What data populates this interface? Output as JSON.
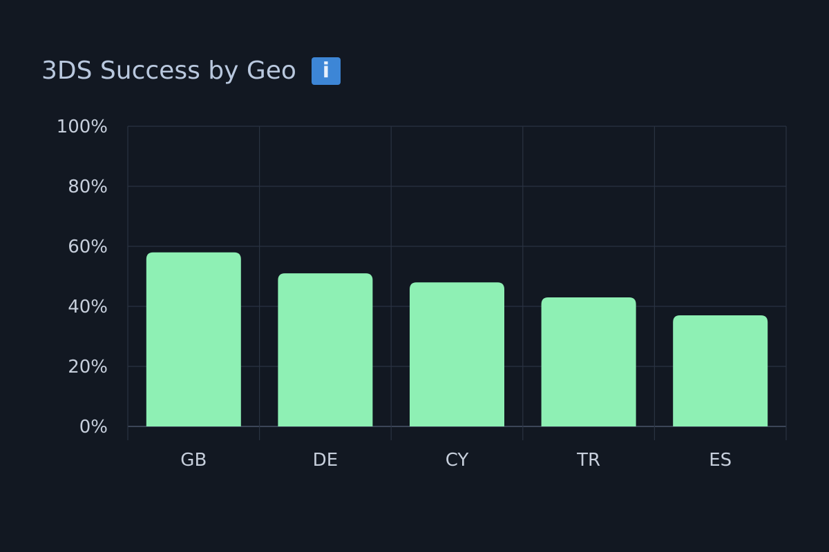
{
  "chart_data": {
    "type": "bar",
    "title": "3DS Success by Geo",
    "categories": [
      "GB",
      "DE",
      "CY",
      "TR",
      "ES"
    ],
    "values": [
      58,
      51,
      48,
      43,
      37
    ],
    "xlabel": "",
    "ylabel": "",
    "ylim": [
      0,
      100
    ],
    "yticks": [
      "0%",
      "20%",
      "40%",
      "60%",
      "80%",
      "100%"
    ],
    "grid": true,
    "bar_color": "#8ef0b4",
    "info_icon": "i"
  }
}
